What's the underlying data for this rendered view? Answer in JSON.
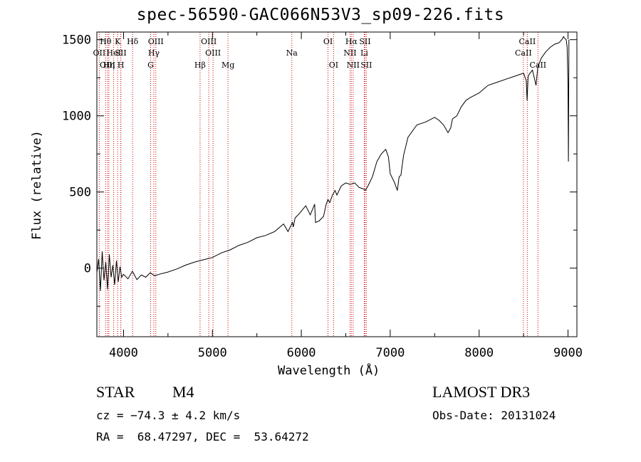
{
  "title": "spec-56590-GAC066N53V3_sp09-226.fits",
  "info": {
    "object_class": "STAR",
    "subclass": "M4",
    "survey": "LAMOST DR3",
    "redshift": "cz = −74.3 ± 4.2 km/s",
    "obs_date": "Obs-Date: 20131024",
    "coords": "RA =  68.47297, DEC =  53.64272"
  },
  "chart_data": {
    "type": "line",
    "title": "spec-56590-GAC066N53V3_sp09-226.fits",
    "xlabel": "Wavelength (Å)",
    "ylabel": "Flux (relative)",
    "xlim": [
      3700,
      9100
    ],
    "ylim": [
      -450,
      1550
    ],
    "xticks": [
      4000,
      5000,
      6000,
      7000,
      8000,
      9000
    ],
    "yticks": [
      0,
      500,
      1000,
      1500
    ],
    "series": [
      {
        "name": "flux",
        "x": [
          3700,
          3720,
          3740,
          3760,
          3780,
          3800,
          3820,
          3840,
          3860,
          3880,
          3900,
          3920,
          3940,
          3960,
          3980,
          4000,
          4050,
          4100,
          4150,
          4200,
          4250,
          4300,
          4350,
          4400,
          4500,
          4600,
          4700,
          4800,
          4900,
          5000,
          5100,
          5200,
          5300,
          5400,
          5500,
          5600,
          5700,
          5800,
          5850,
          5900,
          5910,
          5930,
          5980,
          6050,
          6100,
          6150,
          6160,
          6200,
          6250,
          6280,
          6300,
          6320,
          6350,
          6380,
          6400,
          6450,
          6500,
          6550,
          6600,
          6650,
          6700,
          6720,
          6750,
          6800,
          6850,
          6900,
          6950,
          6980,
          7000,
          7050,
          7080,
          7100,
          7120,
          7150,
          7200,
          7300,
          7400,
          7500,
          7550,
          7600,
          7650,
          7680,
          7700,
          7750,
          7800,
          7850,
          7900,
          8000,
          8100,
          8200,
          8300,
          8400,
          8450,
          8500,
          8530,
          8540,
          8550,
          8560,
          8600,
          8640,
          8660,
          8680,
          8700,
          8750,
          8800,
          8850,
          8900,
          8930,
          8950,
          8960,
          8980,
          8990,
          9000,
          9005,
          9010
        ],
        "y": [
          -30,
          60,
          -150,
          110,
          -80,
          40,
          -140,
          90,
          -60,
          20,
          -110,
          50,
          -90,
          10,
          -60,
          -40,
          -70,
          -20,
          -75,
          -45,
          -60,
          -30,
          -50,
          -40,
          -25,
          -5,
          20,
          40,
          55,
          70,
          100,
          120,
          150,
          170,
          200,
          215,
          240,
          290,
          240,
          300,
          270,
          330,
          360,
          410,
          350,
          420,
          300,
          310,
          340,
          420,
          450,
          430,
          480,
          510,
          480,
          540,
          560,
          550,
          560,
          530,
          520,
          510,
          540,
          600,
          700,
          750,
          780,
          730,
          620,
          560,
          510,
          600,
          610,
          740,
          860,
          940,
          960,
          990,
          970,
          940,
          890,
          920,
          980,
          1000,
          1060,
          1100,
          1120,
          1150,
          1200,
          1220,
          1240,
          1260,
          1270,
          1280,
          1230,
          1100,
          1250,
          1270,
          1300,
          1200,
          1320,
          1350,
          1380,
          1420,
          1450,
          1470,
          1480,
          1500,
          1520,
          1510,
          1500,
          1450,
          1200,
          700,
          1500
        ]
      }
    ],
    "lines": [
      {
        "name": "OII",
        "wl": 3727,
        "row": 1
      },
      {
        "name": "Hθ",
        "wl": 3798,
        "row": 0
      },
      {
        "name": "OIII",
        "wl": 3820,
        "row": 2
      },
      {
        "name": "Hη",
        "wl": 3835,
        "row": 2
      },
      {
        "name": "HeI",
        "wl": 3889,
        "row": 1
      },
      {
        "name": "K",
        "wl": 3934,
        "row": 0
      },
      {
        "name": "SII",
        "wl": 3969,
        "row": 1
      },
      {
        "name": "H",
        "wl": 3970,
        "row": 2
      },
      {
        "name": "Hδ",
        "wl": 4102,
        "row": 0
      },
      {
        "name": "G",
        "wl": 4305,
        "row": 2
      },
      {
        "name": "Hγ",
        "wl": 4341,
        "row": 1
      },
      {
        "name": "OIII",
        "wl": 4363,
        "row": 0
      },
      {
        "name": "Hβ",
        "wl": 4861,
        "row": 2
      },
      {
        "name": "OIII",
        "wl": 4959,
        "row": 0
      },
      {
        "name": "OIII",
        "wl": 5007,
        "row": 1
      },
      {
        "name": "Mg",
        "wl": 5175,
        "row": 2
      },
      {
        "name": "Na",
        "wl": 5893,
        "row": 1
      },
      {
        "name": "OI",
        "wl": 6300,
        "row": 0
      },
      {
        "name": "OI",
        "wl": 6363,
        "row": 2
      },
      {
        "name": "NII",
        "wl": 6548,
        "row": 1
      },
      {
        "name": "Hα",
        "wl": 6563,
        "row": 0
      },
      {
        "name": "NII",
        "wl": 6583,
        "row": 2
      },
      {
        "name": "Li",
        "wl": 6708,
        "row": 1
      },
      {
        "name": "SII",
        "wl": 6716,
        "row": 0
      },
      {
        "name": "SII",
        "wl": 6731,
        "row": 2
      },
      {
        "name": "CaII",
        "wl": 8498,
        "row": 1
      },
      {
        "name": "CaII",
        "wl": 8542,
        "row": 0
      },
      {
        "name": "CaII",
        "wl": 8662,
        "row": 2
      }
    ],
    "line_color": "#cc0000",
    "grid": false
  }
}
